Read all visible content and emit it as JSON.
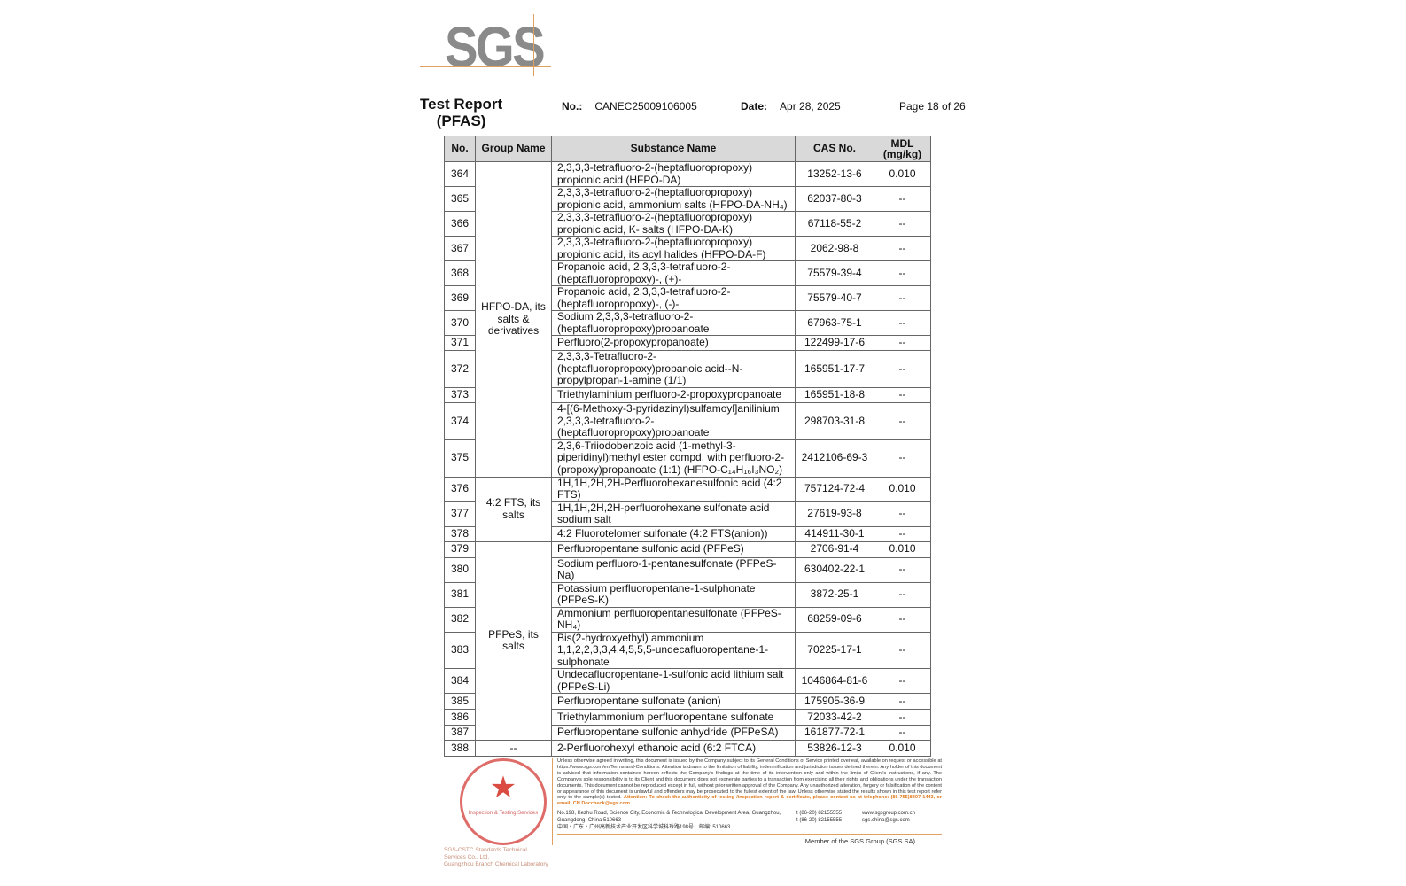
{
  "logo": {
    "text": "SGS"
  },
  "header": {
    "title_line1": "Test Report",
    "title_line2": "(PFAS)",
    "no_label": "No.:",
    "no_value": "CANEC25009106005",
    "date_label": "Date:",
    "date_value": "Apr 28, 2025",
    "page": "Page 18 of 26"
  },
  "table": {
    "columns": [
      "No.",
      "Group Name",
      "Substance Name",
      "CAS No.",
      "MDL (mg/kg)"
    ],
    "groups": [
      {
        "name": "HFPO-DA, its salts & derivatives",
        "rows": [
          [
            "364",
            "2,3,3,3-tetrafluoro-2-(heptafluoropropoxy) propionic acid (HFPO-DA)",
            "13252-13-6",
            "0.010"
          ],
          [
            "365",
            "2,3,3,3-tetrafluoro-2-(heptafluoropropoxy) propionic acid, ammonium salts (HFPO-DA-NH₄)",
            "62037-80-3",
            "--"
          ],
          [
            "366",
            "2,3,3,3-tetrafluoro-2-(heptafluoropropoxy) propionic acid, K- salts (HFPO-DA-K)",
            "67118-55-2",
            "--"
          ],
          [
            "367",
            "2,3,3,3-tetrafluoro-2-(heptafluoropropoxy) propionic acid, its acyl halides (HFPO-DA-F)",
            "2062-98-8",
            "--"
          ],
          [
            "368",
            "Propanoic acid, 2,3,3,3-tetrafluoro-2-(heptafluoropropoxy)-, (+)-",
            "75579-39-4",
            "--"
          ],
          [
            "369",
            "Propanoic acid, 2,3,3,3-tetrafluoro-2-(heptafluoropropoxy)-, (-)-",
            "75579-40-7",
            "--"
          ],
          [
            "370",
            "Sodium 2,3,3,3-tetrafluoro-2-(heptafluoropropoxy)propanoate",
            "67963-75-1",
            "--"
          ],
          [
            "371",
            "Perfluoro(2-propoxypropanoate)",
            "122499-17-6",
            "--"
          ],
          [
            "372",
            "2,3,3,3-Tetrafluoro-2-(heptafluoropropoxy)propanoic acid--N-propylpropan-1-amine (1/1)",
            "165951-17-7",
            "--"
          ],
          [
            "373",
            "Triethylaminium perfluoro-2-propoxypropanoate",
            "165951-18-8",
            "--"
          ],
          [
            "374",
            "4-[(6-Methoxy-3-pyridazinyl)sulfamoyl]anilinium 2,3,3,3-tetrafluoro-2-(heptafluoropropoxy)propanoate",
            "298703-31-8",
            "--"
          ],
          [
            "375",
            "2,3,6-Triiodobenzoic acid (1-methyl-3-piperidinyl)methyl ester compd. with perfluoro-2-(propoxy)propanoate (1:1) (HFPO-C₁₄H₁₆I₃NO₂)",
            "2412106-69-3",
            "--"
          ]
        ]
      },
      {
        "name": "4:2 FTS, its salts",
        "rows": [
          [
            "376",
            "1H,1H,2H,2H-Perfluorohexanesulfonic acid (4:2 FTS)",
            "757124-72-4",
            "0.010"
          ],
          [
            "377",
            "1H,1H,2H,2H-perfluorohexane sulfonate acid sodium salt",
            "27619-93-8",
            "--"
          ],
          [
            "378",
            "4:2 Fluorotelomer sulfonate (4:2 FTS(anion))",
            "414911-30-1",
            "--"
          ]
        ]
      },
      {
        "name": "PFPeS, its salts",
        "rows": [
          [
            "379",
            "Perfluoropentane sulfonic acid (PFPeS)",
            "2706-91-4",
            "0.010"
          ],
          [
            "380",
            "Sodium perfluoro-1-pentanesulfonate (PFPeS-Na)",
            "630402-22-1",
            "--"
          ],
          [
            "381",
            "Potassium perfluoropentane-1-sulphonate (PFPeS-K)",
            "3872-25-1",
            "--"
          ],
          [
            "382",
            "Ammonium perfluoropentanesulfonate (PFPeS-NH₄)",
            "68259-09-6",
            "--"
          ],
          [
            "383",
            "Bis(2-hydroxyethyl) ammonium 1,1,2,2,3,3,4,4,5,5,5-undecafluoropentane-1-sulphonate",
            "70225-17-1",
            "--"
          ],
          [
            "384",
            "Undecafluoropentane-1-sulfonic acid lithium salt (PFPeS-Li)",
            "1046864-81-6",
            "--"
          ],
          [
            "385",
            "Perfluoropentane sulfonate (anion)",
            "175905-36-9",
            "--"
          ],
          [
            "386",
            "Triethylammonium perfluoropentane sulfonate",
            "72033-42-2",
            "--"
          ],
          [
            "387",
            "Perfluoropentane sulfonic anhydride (PFPeSA)",
            "161877-72-1",
            "--"
          ]
        ]
      },
      {
        "name": "--",
        "rows": [
          [
            "388",
            "2-Perfluorohexyl ethanoic acid (6:2 FTCA)",
            "53826-12-3",
            "0.010"
          ]
        ]
      }
    ]
  },
  "footer": {
    "seal_text": "Inspection & Testing Services",
    "lab_line1": "SGS-CSTC Standards Technical Services Co., Ltd.",
    "lab_line2": "Guangzhou Branch Chemical Laboratory",
    "legal": "Unless otherwise agreed in writing, this document is issued by the Company subject to its General Conditions of Service printed overleaf, available on request or accessible at https://www.sgs.com/en/Terms-and-Conditions. Attention is drawn to the limitation of liability, indemnification and jurisdiction issues defined therein. Any holder of this document is advised that information contained hereon reflects the Company's findings at the time of its intervention only and within the limits of Client's instructions, if any. The Company's sole responsibility is to its Client and this document does not exonerate parties to a transaction from exercising all their rights and obligations under the transaction documents. This document cannot be reproduced except in full, without prior written approval of the Company. Any unauthorized alteration, forgery or falsification of the content or appearance of this document is unlawful and offenders may be prosecuted to the fullest extent of the law. Unless otherwise stated the results shown in this test report refer only to the sample(s) tested.",
    "attention": "Attention: To check the authenticity of testing /inspection report & certificate, please contact us at telephone: (86-755)8307 1443, or email: CN.Doccheck@sgs.com",
    "address_en": "No.198, Kezhu Road, Science City, Economic & Technological Development Area, Guangzhou, Guangdong, China 510663",
    "address_cn": "中国・广东・广州高新技术产业开发区科学城科珠路198号　邮编: 510663",
    "tel1": "t (86-20) 82155555",
    "tel2": "t (86-20) 82155555",
    "web": "www.sgsgroup.com.cn",
    "email": "sgs.china@sgs.com",
    "member": "Member of the SGS Group (SGS SA)"
  }
}
